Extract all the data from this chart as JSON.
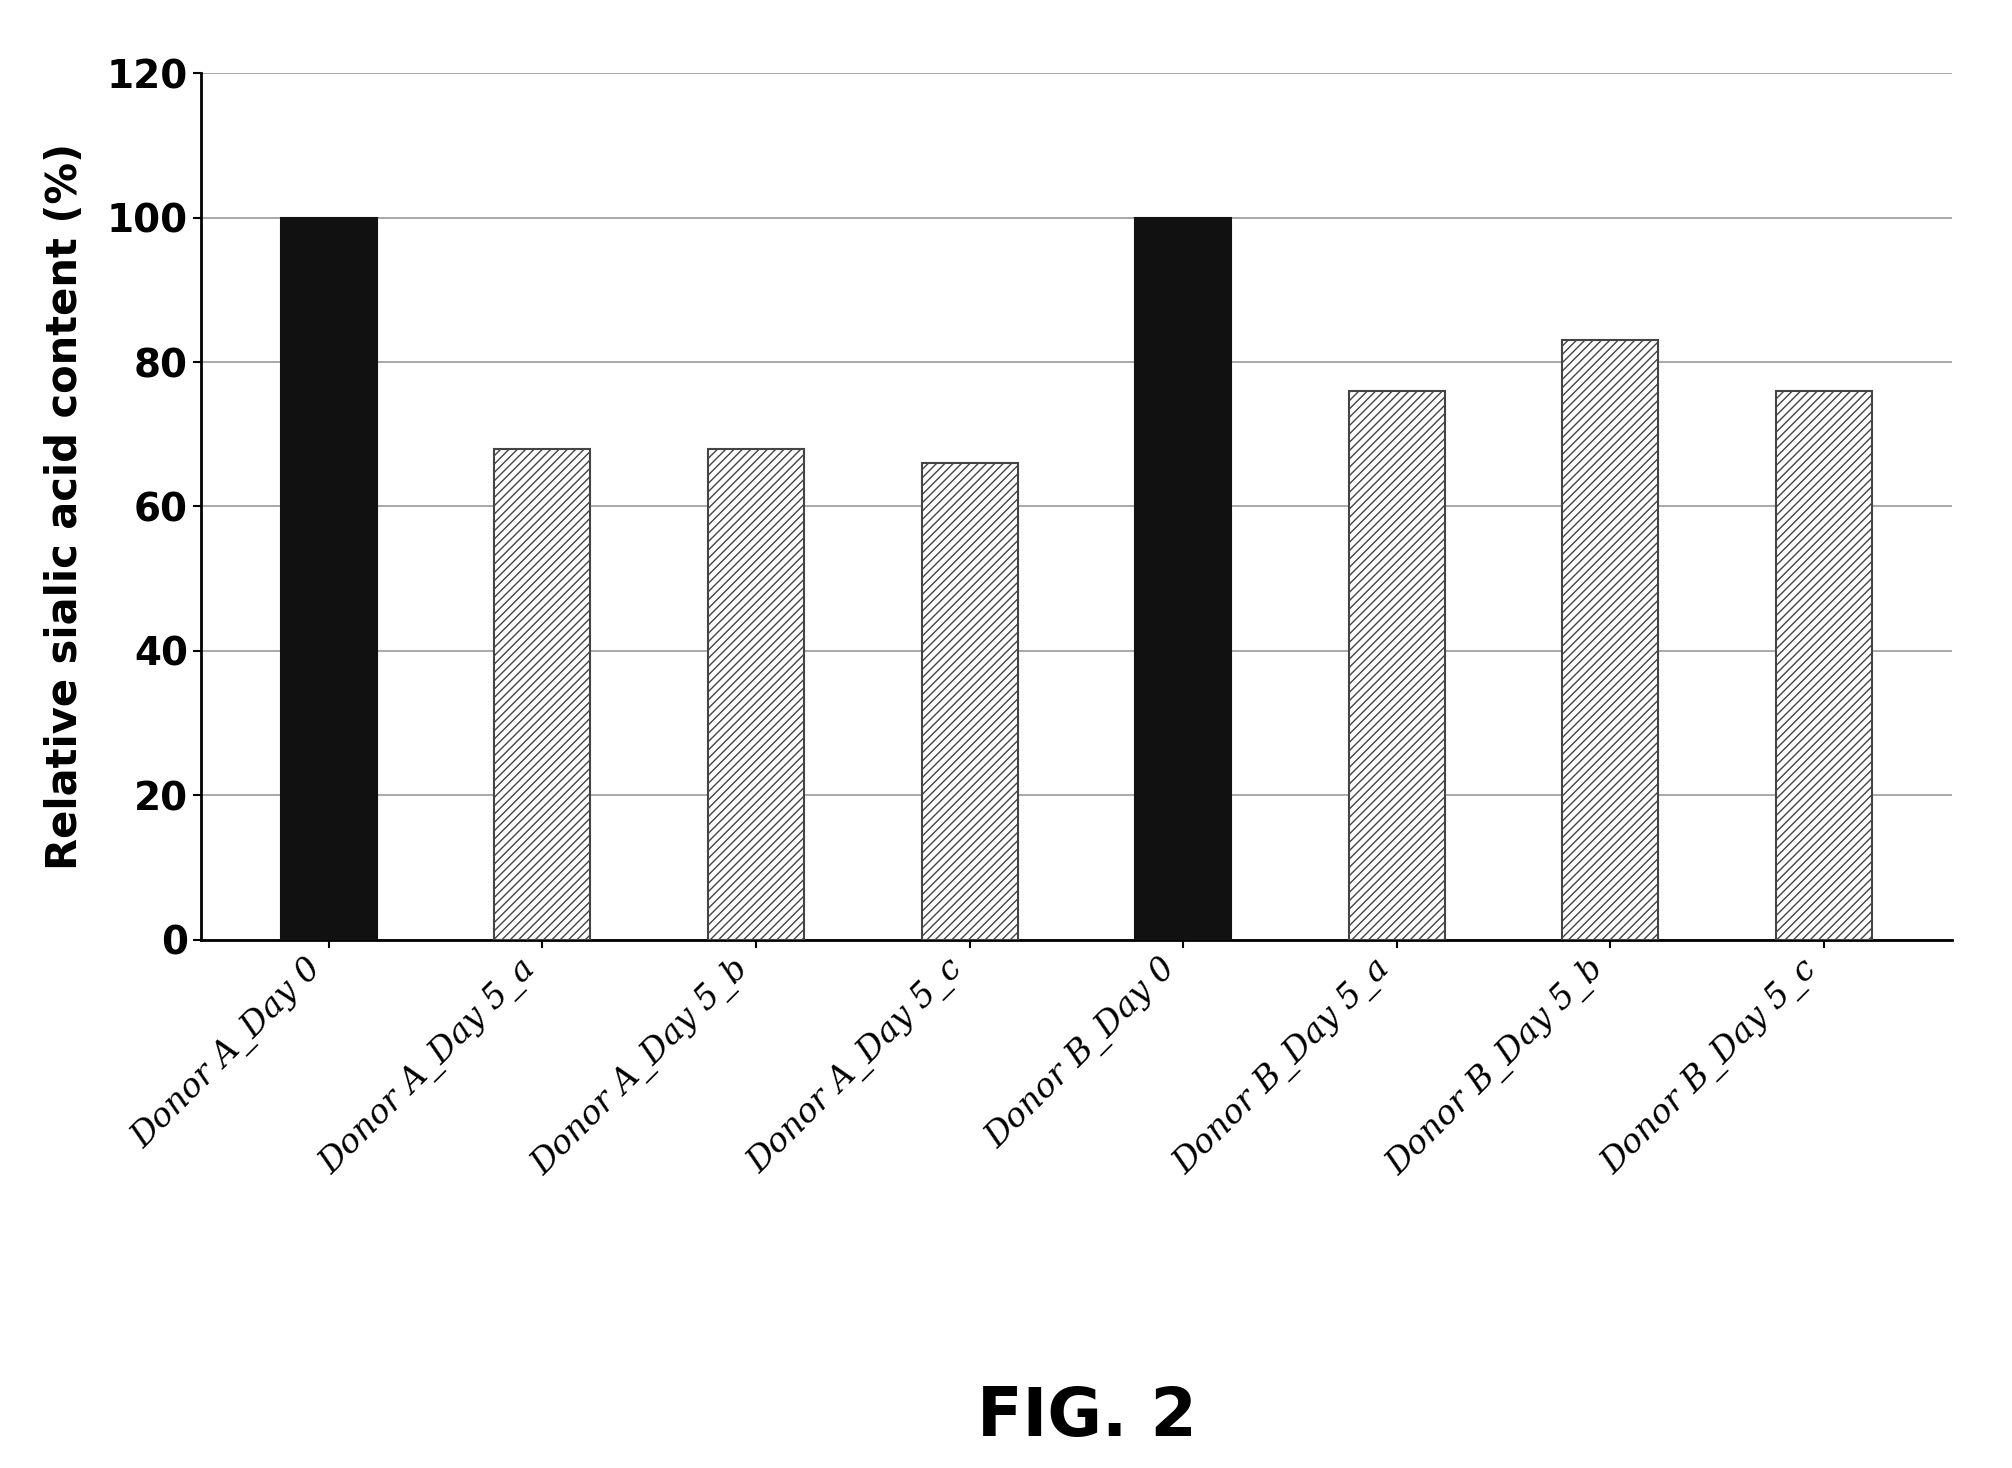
{
  "categories": [
    "Donor A_Day 0",
    "Donor A_Day 5_a",
    "Donor A_Day 5_b",
    "Donor A_Day 5_c",
    "Donor B_Day 0",
    "Donor B_Day 5_a",
    "Donor B_Day 5_b",
    "Donor B_Day 5_c"
  ],
  "values": [
    100,
    68,
    68,
    66,
    100,
    76,
    83,
    76
  ],
  "bar_styles": [
    "solid",
    "hatch",
    "hatch",
    "hatch",
    "solid",
    "hatch",
    "hatch",
    "hatch"
  ],
  "solid_color": "#111111",
  "hatch_facecolor": "#ffffff",
  "hatch_edgecolor": "#444444",
  "hatch_pattern": "////",
  "bar_edgecolor": "#111111",
  "ylabel": "Relative sialic acid content (%)",
  "caption": "FIG. 2",
  "ylim": [
    0,
    120
  ],
  "yticks": [
    0,
    20,
    40,
    60,
    80,
    100,
    120
  ],
  "background_color": "#ffffff",
  "ylabel_fontsize": 30,
  "ytick_fontsize": 28,
  "xtick_fontsize": 24,
  "caption_fontsize": 48,
  "bar_width": 0.45,
  "grid_color": "#999999",
  "grid_linewidth": 1.2,
  "spine_linewidth": 2.0
}
